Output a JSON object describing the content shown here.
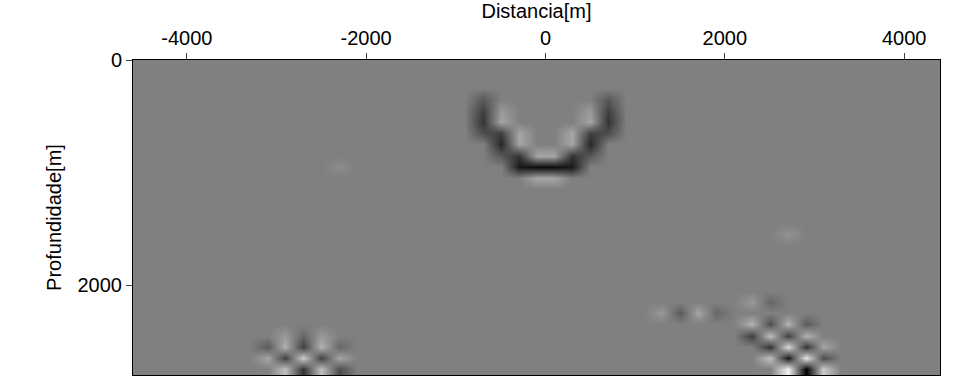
{
  "chart_data": {
    "type": "heatmap",
    "x_label": "Distancia[m]",
    "y_label": "Profundidade[m]",
    "xlim": [
      -4600,
      4400
    ],
    "ylim": [
      0,
      2800
    ],
    "xticks": [
      -4000,
      -2000,
      0,
      2000,
      4000
    ],
    "yticks": [
      0,
      2000
    ],
    "zlim": [
      -1,
      1
    ],
    "grid": false,
    "x": [
      -4500,
      -4300,
      -4100,
      -3900,
      -3700,
      -3500,
      -3300,
      -3100,
      -2900,
      -2700,
      -2500,
      -2300,
      -2100,
      -1900,
      -1700,
      -1500,
      -1300,
      -1100,
      -900,
      -700,
      -500,
      -300,
      -100,
      100,
      300,
      500,
      700,
      900,
      1100,
      1300,
      1500,
      1700,
      1900,
      2100,
      2300,
      2500,
      2700,
      2900,
      3100,
      3300,
      3500,
      3700,
      3900,
      4100,
      4300
    ],
    "y": [
      50,
      150,
      250,
      350,
      450,
      550,
      650,
      750,
      850,
      950,
      1050,
      1150,
      1250,
      1350,
      1450,
      1550,
      1650,
      1750,
      1850,
      1950,
      2050,
      2150,
      2250,
      2350,
      2450,
      2550,
      2650,
      2750
    ],
    "z": [
      [
        0,
        0,
        0,
        0,
        0,
        0,
        0,
        0,
        0,
        0,
        0,
        0,
        0,
        0,
        0,
        0,
        0,
        0,
        0,
        0,
        0,
        0,
        0,
        0,
        0,
        0,
        0,
        0,
        0,
        0,
        0,
        0,
        0,
        0,
        0,
        0,
        0,
        0,
        0,
        0,
        0,
        0,
        0,
        0,
        0
      ],
      [
        0,
        0,
        0,
        0,
        0,
        0,
        0,
        0,
        0,
        0,
        0,
        0,
        0,
        0,
        0,
        0,
        0,
        0,
        0,
        0,
        0,
        0,
        0,
        0,
        0,
        0,
        0,
        0,
        0,
        0,
        0,
        0,
        0,
        0,
        0,
        0,
        0,
        0,
        0,
        0,
        0,
        0,
        0,
        0,
        0
      ],
      [
        0,
        0,
        0,
        0,
        0,
        0,
        0,
        0,
        0,
        0,
        0,
        0,
        0,
        0,
        0,
        0,
        0,
        0,
        0,
        0,
        0,
        0,
        0,
        0,
        0,
        0,
        0,
        0,
        0,
        0,
        0,
        0,
        0,
        0,
        0,
        0,
        0,
        0,
        0,
        0,
        0,
        0,
        0,
        0,
        0
      ],
      [
        0,
        0,
        0,
        0,
        0,
        0,
        0,
        0,
        0,
        0,
        0,
        0,
        0,
        0,
        0,
        0,
        0,
        0,
        0,
        -0.3,
        0,
        0,
        0,
        0,
        0,
        0,
        -0.3,
        0,
        0,
        0,
        0,
        0,
        0,
        0,
        0,
        0,
        0,
        0,
        0,
        0,
        0,
        0,
        0,
        0,
        0
      ],
      [
        0,
        0,
        0,
        0,
        0,
        0,
        0,
        0,
        0,
        0,
        0,
        0,
        0,
        0,
        0,
        0,
        0,
        0,
        0,
        -0.5,
        0.2,
        0,
        0,
        0,
        0,
        0.2,
        -0.5,
        0,
        0,
        0,
        0,
        0,
        0,
        0,
        0,
        0,
        0,
        0,
        0,
        0,
        0,
        0,
        0,
        0,
        0
      ],
      [
        0,
        0,
        0,
        0,
        0,
        0,
        0,
        0,
        0,
        0,
        0,
        0,
        0,
        0,
        0,
        0,
        0,
        0,
        0,
        -0.6,
        0.3,
        0,
        0,
        0,
        0,
        0.3,
        -0.6,
        0,
        0,
        0,
        0,
        0,
        0,
        0,
        0,
        0,
        0,
        0,
        0,
        0,
        0,
        0,
        0,
        0,
        0
      ],
      [
        0,
        0,
        0,
        0,
        0,
        0,
        0,
        0,
        0,
        0,
        0,
        0,
        0,
        0,
        0,
        0,
        0,
        0,
        0,
        -0.4,
        -0.5,
        0.3,
        0,
        0,
        0.3,
        -0.5,
        -0.4,
        0,
        0,
        0,
        0,
        0,
        0,
        0,
        0,
        0,
        0,
        0,
        0,
        0,
        0,
        0,
        0,
        0,
        0
      ],
      [
        0,
        0,
        0,
        0,
        0,
        0,
        0,
        0,
        0,
        0,
        0,
        0,
        0,
        0,
        0,
        0,
        0,
        0,
        0,
        0,
        -0.7,
        0.3,
        0,
        0,
        0.3,
        -0.7,
        0,
        0,
        0,
        0,
        0,
        0,
        0,
        0,
        0,
        0,
        0,
        0,
        0,
        0,
        0,
        0,
        0,
        0,
        0
      ],
      [
        0,
        0,
        0,
        0,
        0,
        0,
        0,
        0,
        0,
        0,
        0,
        0,
        0,
        0,
        0,
        0,
        0,
        0,
        0,
        0,
        -0.3,
        -0.6,
        0.3,
        0.3,
        -0.6,
        -0.3,
        0,
        0,
        0,
        0,
        0,
        0,
        0,
        0,
        0,
        0,
        0,
        0,
        0,
        0,
        0,
        0,
        0,
        0,
        0
      ],
      [
        0,
        0,
        0,
        0,
        0,
        0,
        0,
        0,
        0,
        0,
        0,
        0.1,
        0,
        0,
        0,
        0,
        0,
        0,
        0,
        0,
        0,
        -0.8,
        -0.9,
        -0.9,
        -0.8,
        0,
        0,
        0,
        0,
        0,
        0,
        0,
        0,
        0,
        0,
        0,
        0,
        0,
        0,
        0,
        0,
        0,
        0,
        0,
        0
      ],
      [
        0,
        0,
        0,
        0,
        0,
        0,
        0,
        0,
        0,
        0,
        0,
        0,
        0,
        0,
        0,
        0,
        0,
        0,
        0,
        0,
        0,
        0,
        0.3,
        0.3,
        0,
        0,
        0,
        0,
        0,
        0,
        0,
        0,
        0,
        0,
        0,
        0,
        0,
        0,
        0,
        0,
        0,
        0,
        0,
        0,
        0
      ],
      [
        0,
        0,
        0,
        0,
        0,
        0,
        0,
        0,
        0,
        0,
        0,
        0,
        0,
        0,
        0,
        0,
        0,
        0,
        0,
        0,
        0,
        0,
        0,
        0,
        0,
        0,
        0,
        0,
        0,
        0,
        0,
        0,
        0,
        0,
        0,
        0,
        0,
        0,
        0,
        0,
        0,
        0,
        0,
        0,
        0
      ],
      [
        0,
        0,
        0,
        0,
        0,
        0,
        0,
        0,
        0,
        0,
        0,
        0,
        0,
        0,
        0,
        0,
        0,
        0,
        0,
        0,
        0,
        0,
        0,
        0,
        0,
        0,
        0,
        0,
        0,
        0,
        0,
        0,
        0,
        0,
        0,
        0,
        0,
        0,
        0,
        0,
        0,
        0,
        0,
        0,
        0
      ],
      [
        0,
        0,
        0,
        0,
        0,
        0,
        0,
        0,
        0,
        0,
        0,
        0,
        0,
        0,
        0,
        0,
        0,
        0,
        0,
        0,
        0,
        0,
        0,
        0,
        0,
        0,
        0,
        0,
        0,
        0,
        0,
        0,
        0,
        0,
        0,
        0,
        0,
        0,
        0,
        0,
        0,
        0,
        0,
        0,
        0
      ],
      [
        0,
        0,
        0,
        0,
        0,
        0,
        0,
        0,
        0,
        0,
        0,
        0,
        0,
        0,
        0,
        0,
        0,
        0,
        0,
        0,
        0,
        0,
        0,
        0,
        0,
        0,
        0,
        0,
        0,
        0,
        0,
        0,
        0,
        0,
        0,
        0,
        0,
        0,
        0,
        0,
        0,
        0,
        0,
        0,
        0
      ],
      [
        0,
        0,
        0,
        0,
        0,
        0,
        0,
        0,
        0,
        0,
        0,
        0,
        0,
        0,
        0,
        0,
        0,
        0,
        0,
        0,
        0,
        0,
        0,
        0,
        0,
        0,
        0,
        0,
        0,
        0,
        0,
        0,
        0,
        0,
        0,
        0,
        0.15,
        0,
        0,
        0,
        0,
        0,
        0,
        0,
        0
      ],
      [
        0,
        0,
        0,
        0,
        0,
        0,
        0,
        0,
        0,
        0,
        0,
        0,
        0,
        0,
        0,
        0,
        0,
        0,
        0,
        0,
        0,
        0,
        0,
        0,
        0,
        0,
        0,
        0,
        0,
        0,
        0,
        0,
        0,
        0,
        0,
        0,
        0,
        0,
        0,
        0,
        0,
        0,
        0,
        0,
        0
      ],
      [
        0,
        0,
        0,
        0,
        0,
        0,
        0,
        0,
        0,
        0,
        0,
        0,
        0,
        0,
        0,
        0,
        0,
        0,
        0,
        0,
        0,
        0,
        0,
        0,
        0,
        0,
        0,
        0,
        0,
        0,
        0,
        0,
        0,
        0,
        0,
        0,
        0,
        0,
        0,
        0,
        0,
        0,
        0,
        0,
        0
      ],
      [
        0,
        0,
        0,
        0,
        0,
        0,
        0,
        0,
        0,
        0,
        0,
        0,
        0,
        0,
        0,
        0,
        0,
        0,
        0,
        0,
        0,
        0,
        0,
        0,
        0,
        0,
        0,
        0,
        0,
        0,
        0,
        0,
        0,
        0,
        0,
        0,
        0,
        0,
        0,
        0,
        0,
        0,
        0,
        0,
        0
      ],
      [
        0,
        0,
        0,
        0,
        0,
        0,
        0,
        0,
        0,
        0,
        0,
        0,
        0,
        0,
        0,
        0,
        0,
        0,
        0,
        0,
        0,
        0,
        0,
        0,
        0,
        0,
        0,
        0,
        0,
        0,
        0,
        0,
        0,
        0,
        0,
        0,
        0,
        0,
        0,
        0,
        0,
        0,
        0,
        0,
        0
      ],
      [
        0,
        0,
        0,
        0,
        0,
        0,
        0,
        0,
        0,
        0,
        0,
        0,
        0,
        0,
        0,
        0,
        0,
        0,
        0,
        0,
        0,
        0,
        0,
        0,
        0,
        0,
        0,
        0,
        0,
        0,
        0,
        0,
        0,
        0,
        0,
        0,
        0,
        0,
        0,
        0,
        0,
        0,
        0,
        0,
        0
      ],
      [
        0,
        0,
        0,
        0,
        0,
        0,
        0,
        0,
        0,
        0,
        0,
        0,
        0,
        0,
        0,
        0,
        0,
        0,
        0,
        0,
        0,
        0,
        0,
        0,
        0,
        0,
        0,
        0,
        0,
        0,
        0,
        0,
        0,
        0,
        0.2,
        -0.2,
        0,
        0,
        0,
        0,
        0,
        0,
        0,
        0,
        0
      ],
      [
        0,
        0,
        0,
        0,
        0,
        0,
        0,
        0,
        0,
        0,
        0,
        0,
        0,
        0,
        0,
        0,
        0,
        0,
        0,
        0,
        0,
        0,
        0,
        0,
        0,
        0,
        0,
        0,
        0,
        0.2,
        -0.3,
        0.3,
        -0.2,
        0,
        0,
        0,
        0,
        0,
        0,
        0,
        0,
        0,
        0,
        0,
        0
      ],
      [
        0,
        0,
        0,
        0,
        0,
        0,
        0,
        0,
        0,
        0,
        0,
        0,
        0,
        0,
        0,
        0,
        0,
        0,
        0,
        0,
        0,
        0,
        0,
        0,
        0,
        0,
        0,
        0,
        0,
        0,
        0,
        0,
        0,
        0,
        0.4,
        -0.4,
        0.4,
        -0.3,
        0,
        0,
        0,
        0,
        0,
        0,
        0
      ],
      [
        0,
        0,
        0,
        0,
        0,
        0,
        0,
        0,
        0.2,
        -0.2,
        0.2,
        0,
        0,
        0,
        0,
        0,
        0,
        0,
        0,
        0,
        0,
        0,
        0,
        0,
        0,
        0,
        0,
        0,
        0,
        0,
        0,
        0,
        0,
        0,
        -0.5,
        0.5,
        -0.5,
        0.4,
        0,
        0,
        0,
        0,
        0,
        0,
        0
      ],
      [
        0,
        0,
        0,
        0,
        0,
        0,
        0,
        -0.3,
        0.4,
        -0.5,
        0.4,
        -0.2,
        0,
        0,
        0,
        0,
        0,
        0,
        0,
        0,
        0,
        0,
        0,
        0,
        0,
        0,
        0,
        0,
        0,
        0,
        0,
        0,
        0,
        0,
        0,
        -0.6,
        0.7,
        -0.6,
        0.3,
        0,
        0,
        0,
        0,
        0,
        0
      ],
      [
        0,
        0,
        0,
        0,
        0,
        0,
        0,
        0.3,
        -0.5,
        0.6,
        -0.5,
        0.3,
        0,
        0,
        0,
        0,
        0,
        0,
        0,
        0,
        0,
        0,
        0,
        0,
        0,
        0,
        0,
        0,
        0,
        0,
        0,
        0,
        0,
        0,
        0,
        0.5,
        -0.8,
        0.8,
        -0.4,
        0,
        0,
        0,
        0,
        0,
        0
      ],
      [
        0,
        0,
        0,
        0,
        0,
        0,
        0,
        0,
        0.5,
        -0.6,
        0.5,
        -0.4,
        0,
        0,
        0,
        0,
        0,
        0,
        0,
        0,
        0,
        0,
        0,
        0,
        0,
        0,
        0,
        0,
        0,
        0,
        0,
        0,
        0,
        0,
        0,
        0,
        0.9,
        -1,
        0.6,
        0,
        0,
        0,
        0,
        0,
        0
      ]
    ]
  }
}
